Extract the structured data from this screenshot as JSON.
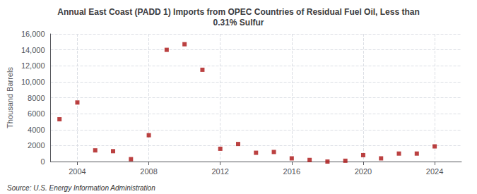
{
  "chart_data": {
    "type": "scatter",
    "title": "Annual East Coast (PADD 1) Imports from OPEC Countries of Residual Fuel Oil, Less than\n0.31% Sulfur",
    "ylabel": "Thousand Barrels",
    "annotations": [
      "Source: U.S. Energy Information Administration"
    ],
    "x": [
      2003,
      2004,
      2005,
      2006,
      2007,
      2008,
      2009,
      2010,
      2011,
      2012,
      2013,
      2014,
      2015,
      2016,
      2017,
      2018,
      2019,
      2020,
      2021,
      2022,
      2023,
      2024
    ],
    "values": [
      5300,
      7400,
      1400,
      1300,
      300,
      3300,
      14000,
      14700,
      11500,
      1600,
      2200,
      1100,
      1200,
      400,
      200,
      0,
      100,
      800,
      400,
      1000,
      1000,
      1900
    ],
    "color": "#aa1111",
    "marker": "square",
    "xlim": [
      2002.5,
      2025.5
    ],
    "xticks": [
      2004,
      2008,
      2012,
      2016,
      2020,
      2024
    ],
    "ylim": [
      0,
      16000
    ],
    "yticks": [
      0,
      2000,
      4000,
      6000,
      8000,
      {
        "value": 10000,
        "label": "10,000"
      },
      {
        "value": 12000,
        "label": "12,000"
      },
      {
        "value": 14000,
        "label": "14,000"
      },
      {
        "value": 16000,
        "label": "16,000"
      }
    ],
    "grid": true
  }
}
